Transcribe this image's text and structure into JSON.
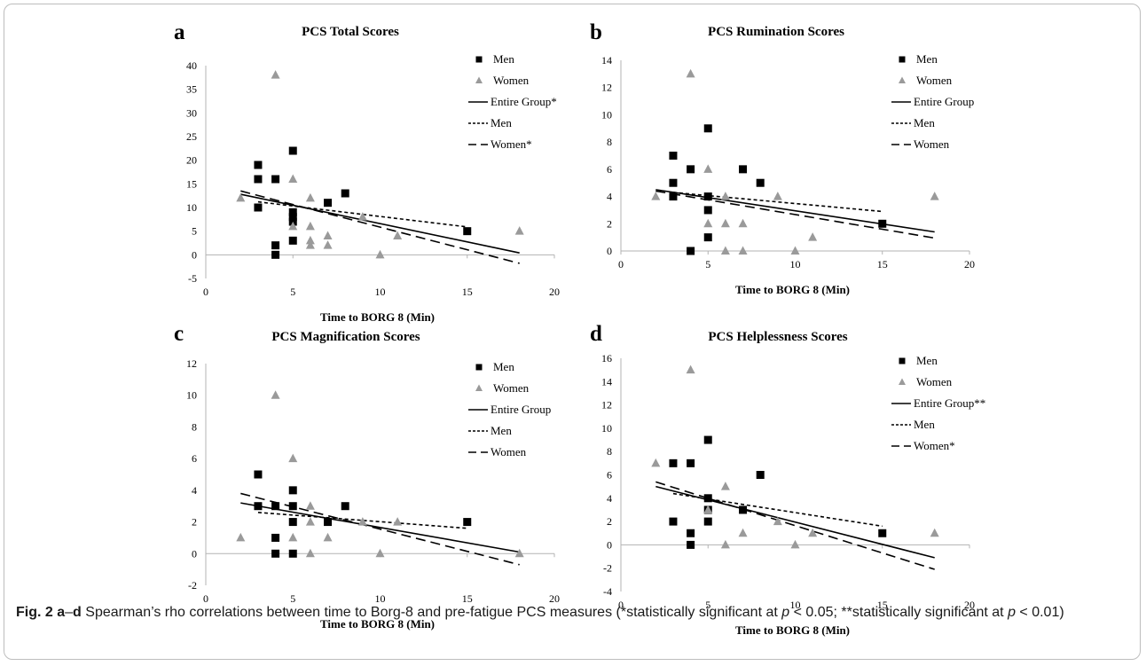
{
  "caption": {
    "fig_label": "Fig. 2",
    "panel_range": "a",
    "dash": "–",
    "panel_range_end": "d",
    "text_before_p1": " Spearman’s rho correlations between time to Borg-8 and pre-fatigue PCS measures (*statistically significant at ",
    "p_symbol": "p",
    "text_after_p1": " < 0.05; **statistically significant at ",
    "text_after_p2": " < 0.01)"
  },
  "colors": {
    "men": "#000000",
    "women": "#9a9a9a",
    "axis": "#b3b3b3"
  },
  "chart_data": [
    {
      "panel": "a",
      "type": "scatter",
      "title": "PCS Total Scores",
      "xlabel": "Time to BORG 8 (Min)",
      "ylabel": "",
      "xlim": [
        0,
        20
      ],
      "ylim": [
        -5,
        40
      ],
      "xticks": [
        "0",
        "5",
        "10",
        "15",
        "20"
      ],
      "yticks": [
        "-5",
        "0",
        "5",
        "10",
        "15",
        "20",
        "25",
        "30",
        "35",
        "40"
      ],
      "legend": [
        "Men",
        "Women",
        "Entire Group*",
        "Men",
        "Women*"
      ],
      "series": [
        {
          "name": "Men",
          "marker": "square",
          "points": [
            [
              3,
              19
            ],
            [
              3,
              16
            ],
            [
              3,
              10
            ],
            [
              4,
              16
            ],
            [
              4,
              2
            ],
            [
              4,
              0
            ],
            [
              5,
              22
            ],
            [
              5,
              9
            ],
            [
              5,
              8
            ],
            [
              5,
              7
            ],
            [
              5,
              3
            ],
            [
              7,
              11
            ],
            [
              8,
              13
            ],
            [
              15,
              5
            ]
          ]
        },
        {
          "name": "Women",
          "marker": "triangle",
          "points": [
            [
              2,
              12
            ],
            [
              4,
              38
            ],
            [
              5,
              16
            ],
            [
              5,
              6
            ],
            [
              6,
              12
            ],
            [
              6,
              6
            ],
            [
              6,
              3
            ],
            [
              6,
              2
            ],
            [
              7,
              4
            ],
            [
              7,
              2
            ],
            [
              9,
              8
            ],
            [
              10,
              0
            ],
            [
              11,
              4
            ],
            [
              18,
              5
            ]
          ]
        }
      ],
      "trendlines": [
        {
          "name": "Entire Group*",
          "style": "solid",
          "from": [
            2,
            12.8
          ],
          "to": [
            18,
            0.4
          ]
        },
        {
          "name": "Men",
          "style": "dotted",
          "from": [
            3,
            11.2
          ],
          "to": [
            15,
            5.9
          ]
        },
        {
          "name": "Women*",
          "style": "dashed",
          "from": [
            2,
            13.5
          ],
          "to": [
            18,
            -1.8
          ]
        }
      ]
    },
    {
      "panel": "b",
      "type": "scatter",
      "title": "PCS Rumination Scores",
      "xlabel": "Time to BORG 8 (Min)",
      "ylabel": "",
      "xlim": [
        0,
        20
      ],
      "ylim": [
        0,
        14
      ],
      "xticks": [
        "0",
        "5",
        "10",
        "15",
        "20"
      ],
      "yticks": [
        "0",
        "2",
        "4",
        "6",
        "8",
        "10",
        "12",
        "14"
      ],
      "legend": [
        "Men",
        "Women",
        "Entire Group",
        "Men",
        "Women"
      ],
      "series": [
        {
          "name": "Men",
          "marker": "square",
          "points": [
            [
              3,
              7
            ],
            [
              3,
              5
            ],
            [
              3,
              4
            ],
            [
              4,
              6
            ],
            [
              4,
              0
            ],
            [
              5,
              9
            ],
            [
              5,
              4
            ],
            [
              5,
              3
            ],
            [
              5,
              1
            ],
            [
              7,
              6
            ],
            [
              8,
              5
            ],
            [
              15,
              2
            ]
          ]
        },
        {
          "name": "Women",
          "marker": "triangle",
          "points": [
            [
              2,
              4
            ],
            [
              4,
              13
            ],
            [
              5,
              6
            ],
            [
              5,
              2
            ],
            [
              6,
              4
            ],
            [
              6,
              2
            ],
            [
              6,
              0
            ],
            [
              7,
              2
            ],
            [
              7,
              0
            ],
            [
              9,
              4
            ],
            [
              10,
              0
            ],
            [
              11,
              1
            ],
            [
              18,
              4
            ]
          ]
        }
      ],
      "trendlines": [
        {
          "name": "Entire Group",
          "style": "solid",
          "from": [
            2,
            4.5
          ],
          "to": [
            18,
            1.4
          ]
        },
        {
          "name": "Men",
          "style": "dotted",
          "from": [
            3,
            4.3
          ],
          "to": [
            15,
            2.9
          ]
        },
        {
          "name": "Women",
          "style": "dashed",
          "from": [
            2,
            4.4
          ],
          "to": [
            18,
            0.95
          ]
        }
      ]
    },
    {
      "panel": "c",
      "type": "scatter",
      "title": "PCS Magnification Scores",
      "xlabel": "Time to BORG 8 (Min)",
      "ylabel": "",
      "xlim": [
        0,
        20
      ],
      "ylim": [
        -2,
        12
      ],
      "xticks": [
        "0",
        "5",
        "10",
        "15",
        "20"
      ],
      "yticks": [
        "-2",
        "0",
        "2",
        "4",
        "6",
        "8",
        "10",
        "12"
      ],
      "legend": [
        "Men",
        "Women",
        "Entire Group",
        "Men",
        "Women"
      ],
      "series": [
        {
          "name": "Men",
          "marker": "square",
          "points": [
            [
              3,
              5
            ],
            [
              3,
              3
            ],
            [
              4,
              3
            ],
            [
              4,
              1
            ],
            [
              4,
              0
            ],
            [
              5,
              4
            ],
            [
              5,
              3
            ],
            [
              5,
              2
            ],
            [
              5,
              0
            ],
            [
              7,
              2
            ],
            [
              8,
              3
            ],
            [
              15,
              2
            ]
          ]
        },
        {
          "name": "Women",
          "marker": "triangle",
          "points": [
            [
              2,
              1
            ],
            [
              4,
              10
            ],
            [
              5,
              6
            ],
            [
              5,
              1
            ],
            [
              6,
              3
            ],
            [
              6,
              2
            ],
            [
              6,
              0
            ],
            [
              7,
              1
            ],
            [
              9,
              2
            ],
            [
              10,
              0
            ],
            [
              11,
              2
            ],
            [
              18,
              0
            ]
          ]
        }
      ],
      "trendlines": [
        {
          "name": "Entire Group",
          "style": "solid",
          "from": [
            2,
            3.2
          ],
          "to": [
            18,
            0.1
          ]
        },
        {
          "name": "Men",
          "style": "dotted",
          "from": [
            3,
            2.6
          ],
          "to": [
            15,
            1.6
          ]
        },
        {
          "name": "Women",
          "style": "dashed",
          "from": [
            2,
            3.8
          ],
          "to": [
            18,
            -0.7
          ]
        }
      ]
    },
    {
      "panel": "d",
      "type": "scatter",
      "title": "PCS Helplessness Scores",
      "xlabel": "Time to BORG 8 (Min)",
      "ylabel": "",
      "xlim": [
        0,
        20
      ],
      "ylim": [
        -4,
        16
      ],
      "xticks": [
        "0",
        "5",
        "10",
        "15",
        "20"
      ],
      "yticks": [
        "-4",
        "-2",
        "0",
        "2",
        "4",
        "6",
        "8",
        "10",
        "12",
        "14",
        "16"
      ],
      "legend": [
        "Men",
        "Women",
        "Entire Group**",
        "Men",
        "Women*"
      ],
      "series": [
        {
          "name": "Men",
          "marker": "square",
          "points": [
            [
              3,
              7
            ],
            [
              3,
              2
            ],
            [
              4,
              7
            ],
            [
              4,
              1
            ],
            [
              4,
              0
            ],
            [
              5,
              9
            ],
            [
              5,
              4
            ],
            [
              5,
              3
            ],
            [
              5,
              2
            ],
            [
              7,
              3
            ],
            [
              8,
              6
            ],
            [
              15,
              1
            ]
          ]
        },
        {
          "name": "Women",
          "marker": "triangle",
          "points": [
            [
              2,
              7
            ],
            [
              4,
              15
            ],
            [
              5,
              3
            ],
            [
              6,
              5
            ],
            [
              6,
              0
            ],
            [
              7,
              1
            ],
            [
              9,
              2
            ],
            [
              10,
              0
            ],
            [
              11,
              1
            ],
            [
              18,
              1
            ]
          ]
        }
      ],
      "trendlines": [
        {
          "name": "Entire Group**",
          "style": "solid",
          "from": [
            2,
            5.0
          ],
          "to": [
            18,
            -1.1
          ]
        },
        {
          "name": "Men",
          "style": "dotted",
          "from": [
            3,
            4.4
          ],
          "to": [
            15,
            1.6
          ]
        },
        {
          "name": "Women*",
          "style": "dashed",
          "from": [
            2,
            5.4
          ],
          "to": [
            18,
            -2.1
          ]
        }
      ]
    }
  ]
}
